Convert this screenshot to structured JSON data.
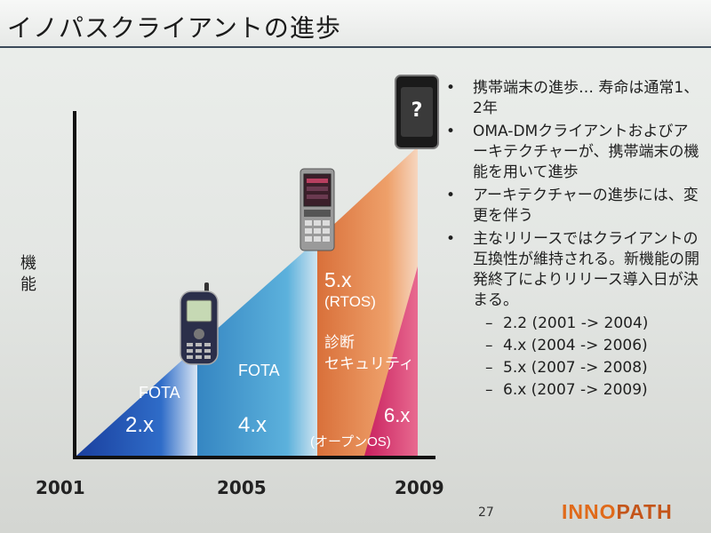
{
  "title": "イノパスクライアントの進歩",
  "y_axis_label": [
    "機",
    "能"
  ],
  "years": [
    "2001",
    "2005",
    "2009"
  ],
  "stages": {
    "s1": {
      "feature": "FOTA",
      "version": "2.x"
    },
    "s2": {
      "feature": "FOTA",
      "version": "4.x"
    },
    "s3": {
      "version": "5.x",
      "note": "(RTOS)",
      "feature1": "診断",
      "feature2": "セキュリティ"
    },
    "s4": {
      "version": "6.x",
      "note": "(オープンOS)"
    }
  },
  "future_phone_symbol": "?",
  "bullets": [
    "携帯端末の進歩… 寿命は通常1、2年",
    "OMA-DMクライアントおよびアーキテクチャーが、携帯端末の機能を用いて進歩",
    "アーキテクチャーの進歩には、変更を伴う",
    "主なリリースではクライアントの互換性が維持される。新機能の開発終了によりリリース導入日が決まる。"
  ],
  "bullet_symbol": "•",
  "sub_bullet_symbol": "–",
  "releases": [
    "2.2 (2001 -> 2004)",
    "4.x (2004 -> 2006)",
    "5.x (2007 -> 2008)",
    "6.x (2007 -> 2009)"
  ],
  "page_number": "27",
  "logo": {
    "part1": "INNO",
    "part2": "PATH"
  },
  "colors": {
    "stage1": "#1f4fb0",
    "stage2": "#3e98cf",
    "stage3": "#e58a48",
    "stage4": "#d8336a",
    "title_rule": "#3b4a5a"
  }
}
